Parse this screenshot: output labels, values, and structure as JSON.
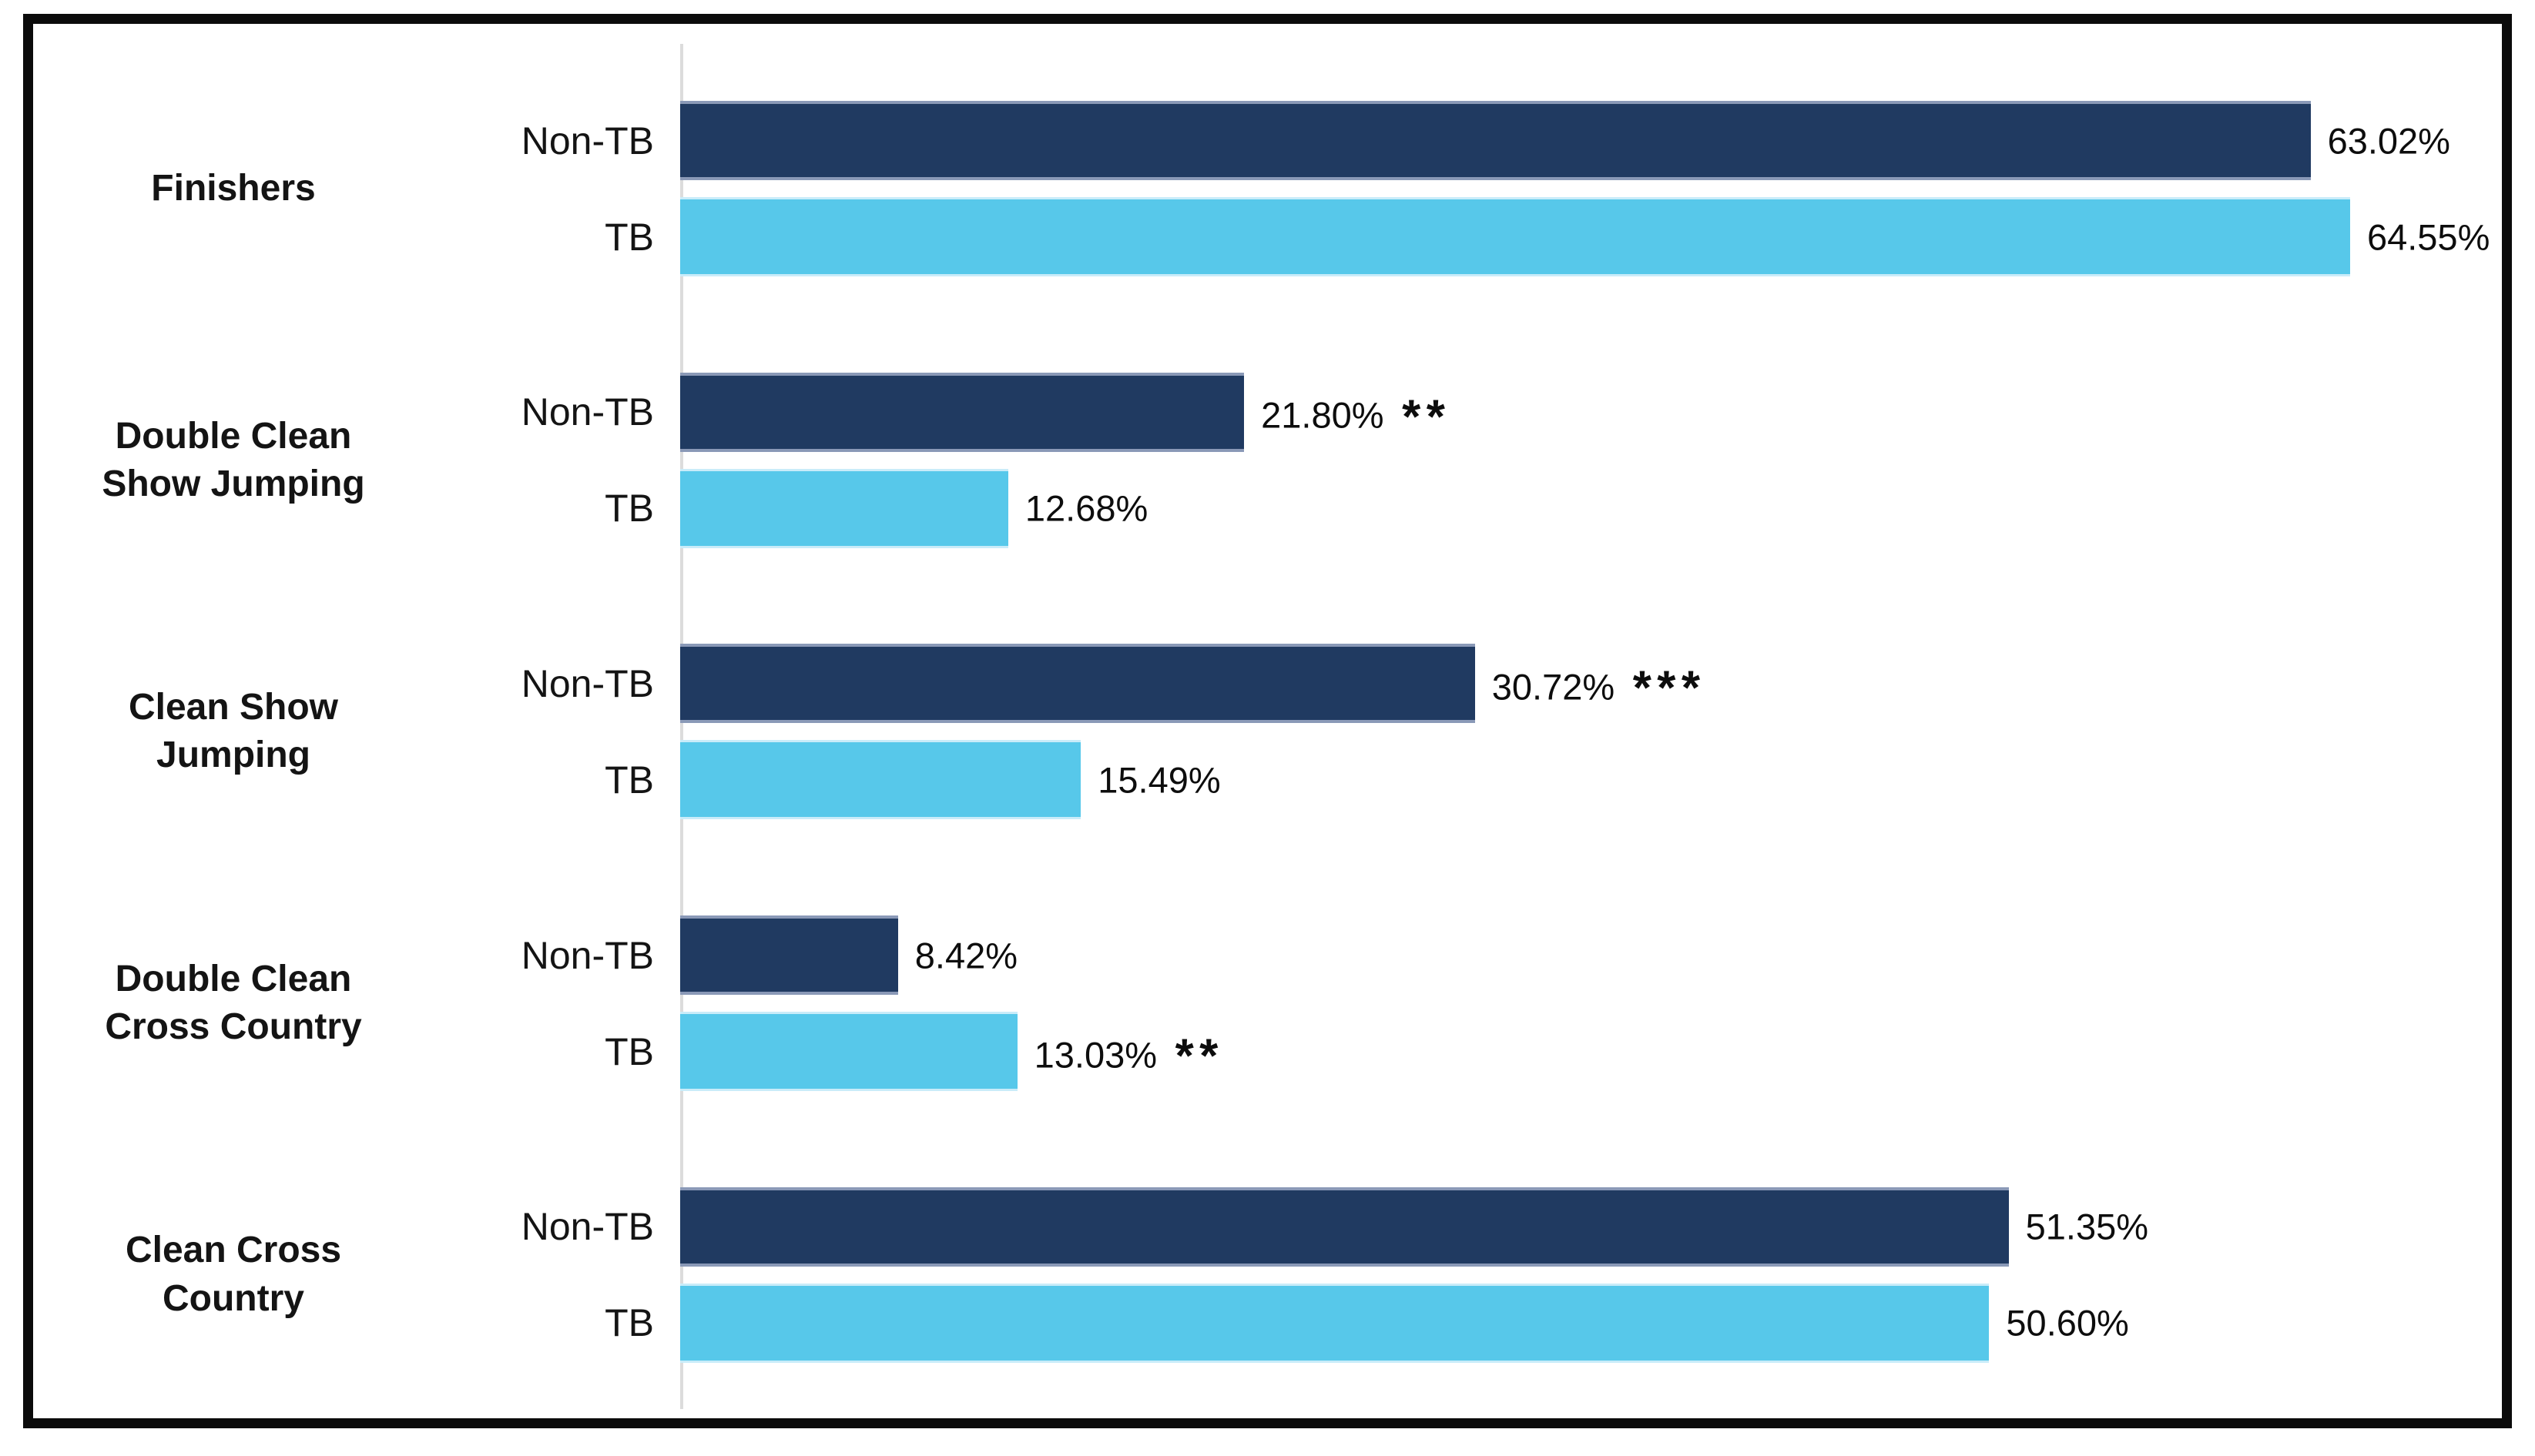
{
  "chart_data": {
    "type": "bar",
    "orientation": "horizontal",
    "unit": "%",
    "axis_max": 70,
    "grid": "off",
    "legend": "none",
    "series_names": [
      "Non-TB",
      "TB"
    ],
    "colors": {
      "Non-TB": "#203a61",
      "TB": "#57c8ea",
      "axis_line": "#dcdcdc",
      "frame_border": "#0b0b0b",
      "text": "#111111"
    },
    "categories": [
      "Finishers",
      "Double Clean Show Jumping",
      "Clean Show Jumping",
      "Double Clean Cross Country",
      "Clean Cross Country"
    ],
    "groups": [
      {
        "category": "Finishers",
        "bars": [
          {
            "series": "Non-TB",
            "value": 63.02,
            "label": "63.02%",
            "significance": ""
          },
          {
            "series": "TB",
            "value": 64.55,
            "label": "64.55%",
            "significance": ""
          }
        ]
      },
      {
        "category": "Double Clean Show Jumping",
        "bars": [
          {
            "series": "Non-TB",
            "value": 21.8,
            "label": "21.80%",
            "significance": "**"
          },
          {
            "series": "TB",
            "value": 12.68,
            "label": "12.68%",
            "significance": ""
          }
        ]
      },
      {
        "category": "Clean Show Jumping",
        "bars": [
          {
            "series": "Non-TB",
            "value": 30.72,
            "label": "30.72%",
            "significance": "***"
          },
          {
            "series": "TB",
            "value": 15.49,
            "label": "15.49%",
            "significance": ""
          }
        ]
      },
      {
        "category": "Double Clean Cross Country",
        "bars": [
          {
            "series": "Non-TB",
            "value": 8.42,
            "label": "8.42%",
            "significance": ""
          },
          {
            "series": "TB",
            "value": 13.03,
            "label": "13.03%",
            "significance": "**"
          }
        ]
      },
      {
        "category": "Clean Cross Country",
        "bars": [
          {
            "series": "Non-TB",
            "value": 51.35,
            "label": "51.35%",
            "significance": ""
          },
          {
            "series": "TB",
            "value": 50.6,
            "label": "50.60%",
            "significance": ""
          }
        ]
      }
    ]
  }
}
